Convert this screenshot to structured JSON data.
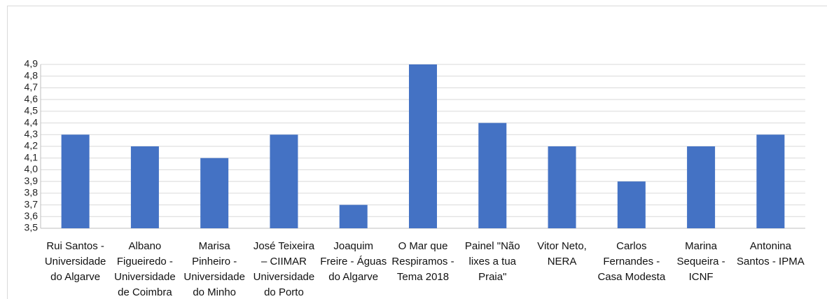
{
  "chart_data": {
    "type": "bar",
    "categories": [
      "Rui Santos - Universidade do Algarve",
      "Albano Figueiredo - Universidade de Coimbra",
      "Marisa Pinheiro - Universidade do Minho",
      "José Teixeira – CIIMAR Universidade do Porto",
      "Joaquim Freire - Águas do Algarve",
      "O Mar que Respiramos - Tema 2018",
      "Painel \"Não lixes a tua Praia\"",
      "Vitor Neto, NERA",
      "Carlos Fernandes - Casa Modesta",
      "Marina Sequeira - ICNF",
      "Antonina Santos - IPMA"
    ],
    "values": [
      4.3,
      4.2,
      4.1,
      4.3,
      3.7,
      4.9,
      4.4,
      4.2,
      3.9,
      4.2,
      4.3
    ],
    "color": "#4472c4",
    "ylim": [
      3.5,
      4.9
    ],
    "yticks": [
      {
        "value": 3.5,
        "label": "3,5"
      },
      {
        "value": 3.6,
        "label": "3,6"
      },
      {
        "value": 3.7,
        "label": "3,7"
      },
      {
        "value": 3.8,
        "label": "3,8"
      },
      {
        "value": 3.9,
        "label": "3,9"
      },
      {
        "value": 4.0,
        "label": "4,0"
      },
      {
        "value": 4.1,
        "label": "4,1"
      },
      {
        "value": 4.2,
        "label": "4,2"
      },
      {
        "value": 4.3,
        "label": "4,3"
      },
      {
        "value": 4.4,
        "label": "4,4"
      },
      {
        "value": 4.5,
        "label": "4,5"
      },
      {
        "value": 4.6,
        "label": "4,6"
      },
      {
        "value": 4.7,
        "label": "4,7"
      },
      {
        "value": 4.8,
        "label": "4,8"
      },
      {
        "value": 4.9,
        "label": "4,9"
      }
    ],
    "grid": true
  }
}
